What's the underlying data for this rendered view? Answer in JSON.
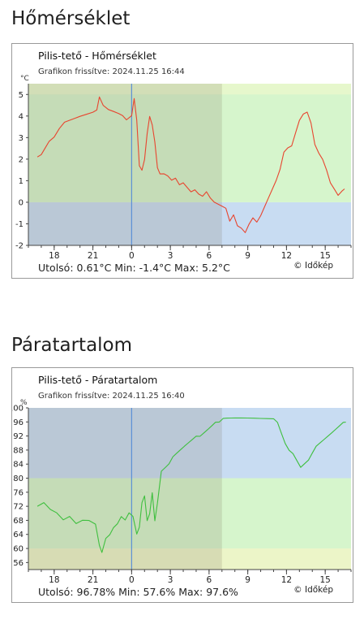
{
  "sections": [
    {
      "heading": "Hőmérséklet",
      "chart_data": {
        "type": "line",
        "title": "Pilis-tető - Hőmérséklet",
        "subtitle": "Grafikon frissítve: 2024.11.25 16:44",
        "unit": "°C",
        "ylim": [
          -2,
          5.5
        ],
        "y_ticks": [
          "5",
          "4",
          "3",
          "2",
          "1",
          "0",
          "-1",
          "-2"
        ],
        "x_ticks": [
          "18",
          "21",
          "0",
          "3",
          "6",
          "9",
          "12",
          "15"
        ],
        "x_range_hours": [
          16,
          41
        ],
        "series": [
          {
            "color": "#e8452f",
            "x": [
              16.7,
              17.0,
              17.3,
              17.6,
              18.0,
              18.4,
              18.8,
              19.2,
              19.6,
              20.0,
              20.5,
              21.0,
              21.3,
              21.5,
              21.8,
              22.2,
              22.6,
              23.0,
              23.3,
              23.6,
              24.0,
              24.2,
              24.4,
              24.6,
              24.8,
              25.0,
              25.2,
              25.4,
              25.6,
              25.8,
              26.0,
              26.2,
              26.5,
              26.8,
              27.1,
              27.4,
              27.7,
              28.0,
              28.3,
              28.6,
              28.9,
              29.2,
              29.5,
              29.8,
              30.1,
              30.4,
              30.7,
              31.0,
              31.3,
              31.6,
              31.9,
              32.2,
              32.5,
              32.8,
              33.1,
              33.4,
              33.7,
              34.0,
              34.3,
              34.6,
              34.9,
              35.2,
              35.5,
              35.8,
              36.1,
              36.4,
              36.7,
              37.0,
              37.3,
              37.6,
              37.9,
              38.2,
              38.5,
              38.8,
              39.1,
              39.4,
              39.7,
              40.0,
              40.3,
              40.5
            ],
            "values": [
              2.1,
              2.2,
              2.5,
              2.8,
              3.0,
              3.4,
              3.7,
              3.8,
              3.9,
              4.0,
              4.1,
              4.2,
              4.3,
              4.9,
              4.5,
              4.3,
              4.2,
              4.1,
              4.0,
              3.8,
              4.0,
              4.8,
              3.8,
              1.7,
              1.5,
              2.0,
              3.2,
              4.0,
              3.6,
              2.8,
              1.6,
              1.3,
              1.3,
              1.2,
              1.0,
              1.1,
              0.8,
              0.9,
              0.7,
              0.5,
              0.6,
              0.4,
              0.3,
              0.5,
              0.2,
              0.0,
              -0.1,
              -0.2,
              -0.3,
              -0.9,
              -0.6,
              -1.1,
              -1.2,
              -1.4,
              -1.0,
              -0.7,
              -0.9,
              -0.6,
              -0.2,
              0.2,
              0.6,
              1.0,
              1.5,
              2.3,
              2.5,
              2.6,
              3.2,
              3.8,
              4.1,
              4.2,
              3.7,
              2.7,
              2.3,
              2.0,
              1.5,
              0.9,
              0.6,
              0.3,
              0.5,
              0.6
            ]
          }
        ],
        "grid": false
      },
      "stats": "Utolsó: 0.61°C  Min: -1.4°C  Max: 5.2°C",
      "credit": "© Időkép"
    },
    {
      "heading": "Páratartalom",
      "chart_data": {
        "type": "line",
        "title": "Pilis-tető - Páratartalom",
        "subtitle": "Grafikon frissítve: 2024.11.25 16:40",
        "unit": "%",
        "ylim": [
          54,
          100
        ],
        "y_ticks": [
          "100",
          "96",
          "92",
          "88",
          "84",
          "80",
          "76",
          "72",
          "68",
          "64",
          "60",
          "56"
        ],
        "x_ticks": [
          "18",
          "21",
          "0",
          "3",
          "6",
          "9",
          "12",
          "15"
        ],
        "x_range_hours": [
          16,
          41
        ],
        "series": [
          {
            "color": "#3fbf3f",
            "x": [
              16.7,
              17.2,
              17.7,
              18.2,
              18.7,
              19.2,
              19.7,
              20.2,
              20.7,
              21.2,
              21.5,
              21.7,
              22.0,
              22.3,
              22.6,
              22.9,
              23.2,
              23.5,
              23.8,
              24.1,
              24.4,
              24.6,
              24.8,
              25.0,
              25.2,
              25.4,
              25.6,
              25.8,
              26.0,
              26.3,
              26.6,
              26.9,
              27.2,
              27.5,
              27.8,
              28.1,
              28.4,
              28.7,
              29.0,
              29.3,
              29.6,
              29.9,
              30.2,
              30.5,
              30.8,
              31.1,
              31.4,
              31.7,
              32.0,
              32.5,
              33.0,
              33.5,
              34.0,
              34.5,
              35.0,
              35.3,
              35.6,
              35.9,
              36.2,
              36.5,
              36.8,
              37.1,
              37.4,
              37.7,
              38.0,
              38.3,
              38.6,
              38.9,
              39.2,
              39.5,
              39.8,
              40.1,
              40.4,
              40.6
            ],
            "values": [
              72,
              73,
              71,
              70,
              68,
              69,
              67,
              68,
              68,
              67,
              61,
              59,
              63,
              64,
              66,
              67,
              69,
              68,
              70,
              69,
              64,
              66,
              73,
              75,
              68,
              70,
              76,
              68,
              73,
              82,
              83,
              84,
              86,
              87,
              88,
              89,
              90,
              91,
              92,
              92,
              93,
              94,
              95,
              96,
              96,
              97,
              97,
              97,
              97,
              97,
              97,
              97,
              97,
              97,
              97,
              96,
              93,
              90,
              88,
              87,
              85,
              83,
              84,
              85,
              87,
              89,
              90,
              91,
              92,
              93,
              94,
              95,
              96,
              96
            ]
          }
        ],
        "grid": false
      },
      "stats": "Utolsó: 96.78%  Min: 57.6%  Max: 97.6%",
      "credit": "© Időkép"
    }
  ]
}
